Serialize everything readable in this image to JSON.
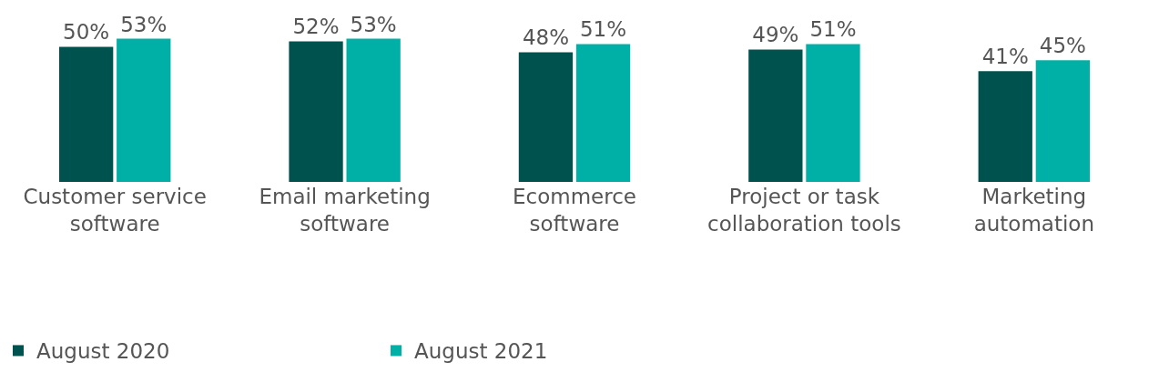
{
  "chart_data": {
    "type": "bar",
    "categories": [
      "Customer service software",
      "Email marketing software",
      "Ecommerce software",
      "Project or task collaboration tools",
      "Marketing automation"
    ],
    "series": [
      {
        "name": "August 2020",
        "color": "#00524f",
        "values": [
          50,
          52,
          48,
          49,
          41
        ],
        "value_labels": [
          "50%",
          "52%",
          "48%",
          "49%",
          "41%"
        ]
      },
      {
        "name": "August 2021",
        "color": "#00b0a6",
        "values": [
          53,
          53,
          51,
          51,
          45
        ],
        "value_labels": [
          "53%",
          "53%",
          "51%",
          "51%",
          "45%"
        ]
      }
    ],
    "legend": "bottom left",
    "grid": false
  }
}
